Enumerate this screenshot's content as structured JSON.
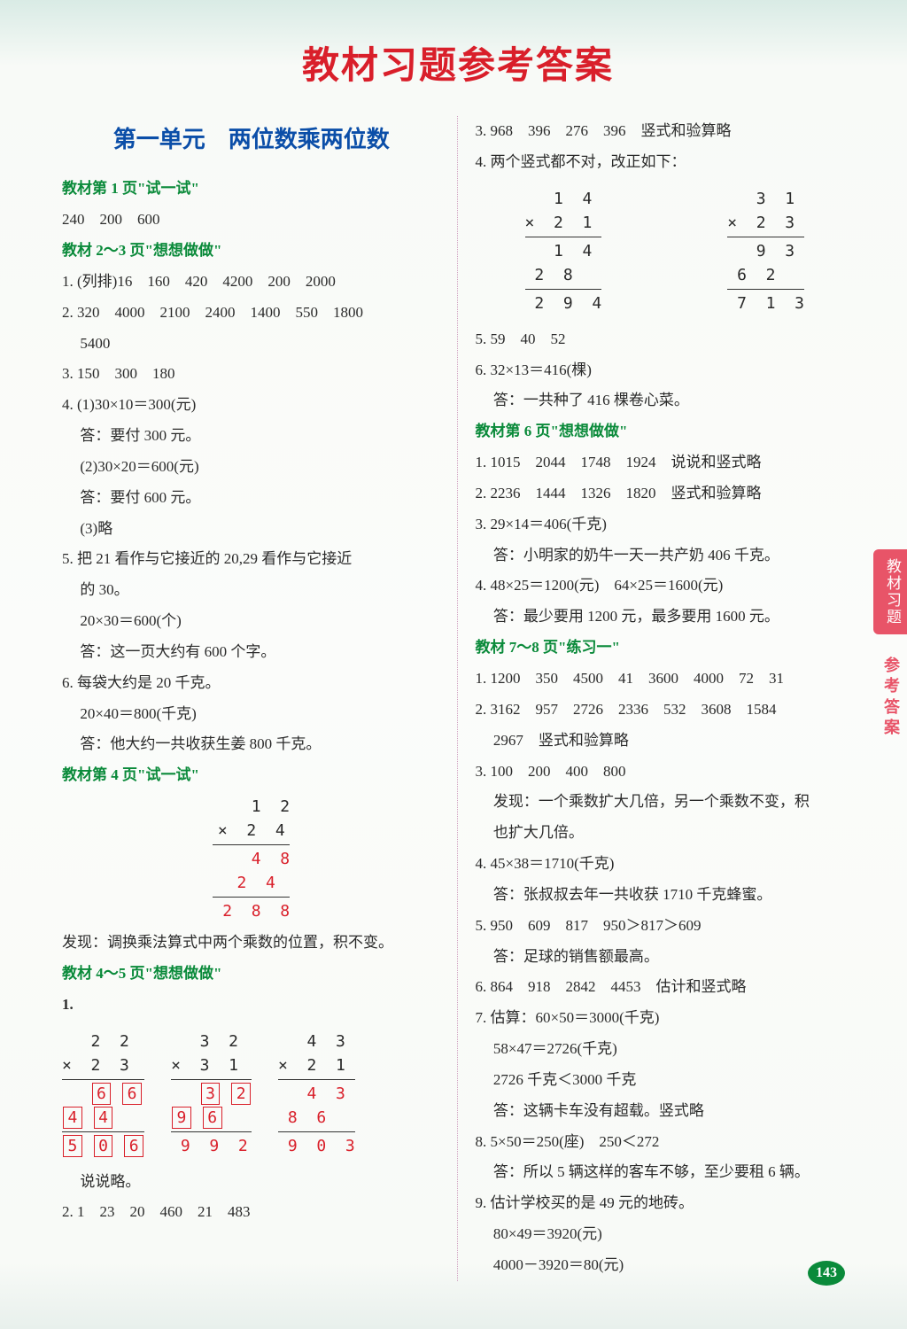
{
  "title": "教材习题参考答案",
  "unit_title": "第一单元　两位数乘两位数",
  "side_tab": "教材习题",
  "side_text": "参考答案",
  "page_number": "143",
  "left": {
    "s1_hdr": "教材第 1 页\"试一试\"",
    "s1_l1": "240　200　600",
    "s2_hdr": "教材 2～3 页\"想想做做\"",
    "s2_l1": "1. (列排)16　160　420　4200　200　2000",
    "s2_l2": "2. 320　4000　2100　2400　1400　550　1800",
    "s2_l2b": "5400",
    "s2_l3": "3. 150　300　180",
    "s2_l4a": "4. (1)30×10＝300(元)",
    "s2_l4b": "答：要付 300 元。",
    "s2_l4c": "(2)30×20＝600(元)",
    "s2_l4d": "答：要付 600 元。",
    "s2_l4e": "(3)略",
    "s2_l5a": "5. 把 21 看作与它接近的 20,29 看作与它接近",
    "s2_l5b": "的 30。",
    "s2_l5c": "20×30＝600(个)",
    "s2_l5d": "答：这一页大约有 600 个字。",
    "s2_l6a": "6. 每袋大约是 20 千克。",
    "s2_l6b": "20×40＝800(千克)",
    "s2_l6c": "答：他大约一共收获生姜 800 千克。",
    "s3_hdr": "教材第 4 页\"试一试\"",
    "vmul1": {
      "r1": "    1  2",
      "r2": "×  2  4",
      "r3": "    4  8",
      "r4": " 2  4",
      "r5": " 2  8  8"
    },
    "s3_l1": "发现：调换乘法算式中两个乘数的位置，积不变。",
    "s4_hdr": "教材 4～5 页\"想想做做\"",
    "m1": {
      "a1": "   2  2",
      "a2": "×  2  3",
      "b1": "   3  2",
      "b2": "×  3  1",
      "c1": "   4  3",
      "c2": "×  2  1",
      "c3": "   4  3",
      "c4": " 8  6",
      "c5": " 9  0  3",
      "b3r": " 9  9  2"
    },
    "s4_say": "说说略。",
    "s4_l2": "2. 1　23　20　460　21　483"
  },
  "right": {
    "l1": "3. 968　396　276　396　竖式和验算略",
    "l2": "4. 两个竖式都不对，改正如下：",
    "vmulA": {
      "r1": "   1  4",
      "r2": "×  2  1",
      "r3": "   1  4",
      "r4": " 2  8",
      "r5": " 2  9  4"
    },
    "vmulB": {
      "r1": "   3  1",
      "r2": "×  2  3",
      "r3": "   9  3",
      "r4": " 6  2",
      "r5": " 7  1  3"
    },
    "l5": "5. 59　40　52",
    "l6a": "6. 32×13＝416(棵)",
    "l6b": "答：一共种了 416 棵卷心菜。",
    "s6_hdr": "教材第 6 页\"想想做做\"",
    "s6_l1": "1. 1015　2044　1748　1924　说说和竖式略",
    "s6_l2": "2. 2236　1444　1326　1820　竖式和验算略",
    "s6_l3a": "3. 29×14＝406(千克)",
    "s6_l3b": "答：小明家的奶牛一天一共产奶 406 千克。",
    "s6_l4a": "4. 48×25＝1200(元)　64×25＝1600(元)",
    "s6_l4b": "答：最少要用 1200 元，最多要用 1600 元。",
    "s7_hdr": "教材 7～8 页\"练习一\"",
    "s7_l1": "1. 1200　350　4500　41　3600　4000　72　31",
    "s7_l2a": "2. 3162　957　2726　2336　532　3608　1584",
    "s7_l2b": "2967　竖式和验算略",
    "s7_l3a": "3. 100　200　400　800",
    "s7_l3b": "发现：一个乘数扩大几倍，另一个乘数不变，积",
    "s7_l3c": "也扩大几倍。",
    "s7_l4a": "4. 45×38＝1710(千克)",
    "s7_l4b": "答：张叔叔去年一共收获 1710 千克蜂蜜。",
    "s7_l5a": "5. 950　609　817　950＞817＞609",
    "s7_l5b": "答：足球的销售额最高。",
    "s7_l6": "6. 864　918　2842　4453　估计和竖式略",
    "s7_l7a": "7. 估算：60×50＝3000(千克)",
    "s7_l7b": "58×47＝2726(千克)",
    "s7_l7c": "2726 千克＜3000 千克",
    "s7_l7d": "答：这辆卡车没有超载。竖式略",
    "s7_l8a": "8. 5×50＝250(座)　250＜272",
    "s7_l8b": "答：所以 5 辆这样的客车不够，至少要租 6 辆。",
    "s7_l9a": "9. 估计学校买的是 49 元的地砖。",
    "s7_l9b": "80×49＝3920(元)",
    "s7_l9c": "4000－3920＝80(元)"
  }
}
